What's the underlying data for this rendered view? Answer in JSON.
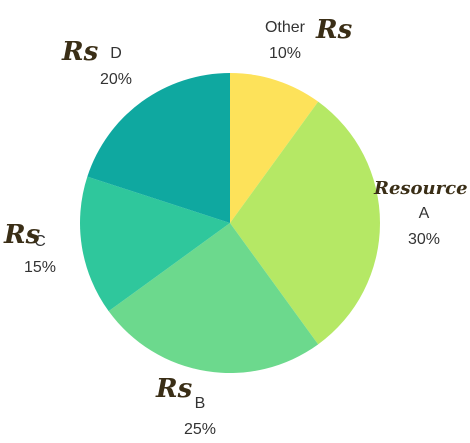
{
  "chart_data": {
    "type": "pie",
    "title": "",
    "slices": [
      {
        "label": "Other",
        "value": 10,
        "display": "10%",
        "color": "#fde25a"
      },
      {
        "label": "A",
        "value": 30,
        "display": "30%",
        "color": "#b5e865"
      },
      {
        "label": "B",
        "value": 25,
        "display": "25%",
        "color": "#6cd98d"
      },
      {
        "label": "C",
        "value": 15,
        "display": "15%",
        "color": "#2fc79c"
      },
      {
        "label": "D",
        "value": 20,
        "display": "20%",
        "color": "#0fa8a0"
      }
    ],
    "start_angle_deg": 0,
    "direction": "clockwise",
    "legend": "none"
  },
  "annotations": {
    "rs_other": "Rs",
    "resource_a": "Resource",
    "rs_b": "Rs",
    "rs_c": "Rs",
    "rs_d": "Rs"
  }
}
